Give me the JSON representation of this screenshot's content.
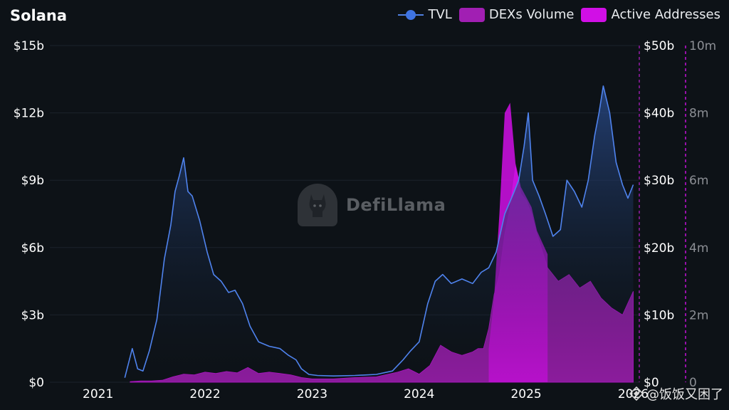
{
  "header": {
    "title": "Solana",
    "legend": [
      {
        "label": "TVL",
        "color": "#3f74e3"
      },
      {
        "label": "DEXs Volume",
        "color": "#a11fb3"
      },
      {
        "label": "Active Addresses",
        "color": "#d10fe6"
      }
    ]
  },
  "watermark": {
    "text": "DefiLlama"
  },
  "corner_mark": {
    "text": "@饭饭又困了",
    "icon": "binance-diamond-icon"
  },
  "chart_data": {
    "type": "area",
    "title": "Solana",
    "x_ticks": [
      "2021",
      "2022",
      "2023",
      "2024",
      "2025",
      "2026"
    ],
    "x_range": [
      2020.55,
      2026.05
    ],
    "y_left": {
      "label": "TVL",
      "range": [
        0,
        15
      ],
      "unit": "billion USD",
      "ticks": [
        "$0",
        "$3b",
        "$6b",
        "$9b",
        "$12b",
        "$15b"
      ]
    },
    "y_right_1": {
      "label": "DEXs Volume",
      "range": [
        0,
        50
      ],
      "unit": "billion USD",
      "ticks": [
        "$0",
        "$10b",
        "$20b",
        "$30b",
        "$40b",
        "$50b"
      ]
    },
    "y_right_2": {
      "label": "Active Addresses",
      "range": [
        0,
        10
      ],
      "unit": "million",
      "ticks": [
        "0",
        "2m",
        "4m",
        "6m",
        "8m",
        "10m"
      ]
    },
    "series": [
      {
        "name": "TVL",
        "type": "line-area",
        "axis": "left",
        "x": [
          2021.25,
          2021.32,
          2021.37,
          2021.42,
          2021.48,
          2021.55,
          2021.62,
          2021.68,
          2021.72,
          2021.76,
          2021.8,
          2021.84,
          2021.88,
          2021.95,
          2022.02,
          2022.08,
          2022.15,
          2022.22,
          2022.28,
          2022.35,
          2022.42,
          2022.5,
          2022.6,
          2022.7,
          2022.78,
          2022.85,
          2022.9,
          2022.97,
          2023.05,
          2023.2,
          2023.4,
          2023.6,
          2023.75,
          2023.85,
          2023.92,
          2024.0,
          2024.08,
          2024.15,
          2024.22,
          2024.3,
          2024.4,
          2024.5,
          2024.58,
          2024.65,
          2024.72,
          2024.8,
          2024.88,
          2024.93,
          2024.98,
          2025.02,
          2025.06,
          2025.12,
          2025.18,
          2025.25,
          2025.32,
          2025.38,
          2025.45,
          2025.52,
          2025.58,
          2025.64,
          2025.68,
          2025.72,
          2025.78,
          2025.84,
          2025.9,
          2025.95,
          2026.0
        ],
        "values": [
          0.2,
          1.5,
          0.6,
          0.5,
          1.4,
          2.8,
          5.5,
          7.0,
          8.5,
          9.2,
          10.0,
          8.5,
          8.3,
          7.2,
          5.8,
          4.8,
          4.5,
          4.0,
          4.1,
          3.5,
          2.5,
          1.8,
          1.6,
          1.5,
          1.2,
          1.0,
          0.6,
          0.35,
          0.3,
          0.28,
          0.3,
          0.35,
          0.5,
          1.0,
          1.4,
          1.8,
          3.5,
          4.5,
          4.8,
          4.4,
          4.6,
          4.4,
          4.9,
          5.1,
          5.8,
          7.5,
          8.4,
          9.0,
          10.5,
          12.0,
          9.0,
          8.3,
          7.5,
          6.5,
          6.8,
          9.0,
          8.5,
          7.8,
          9.0,
          11.0,
          12.0,
          13.2,
          12.0,
          9.8,
          8.8,
          8.2,
          8.8
        ]
      },
      {
        "name": "DEXs Volume",
        "type": "area",
        "axis": "right_1",
        "x": [
          2021.3,
          2021.4,
          2021.5,
          2021.6,
          2021.7,
          2021.8,
          2021.9,
          2022.0,
          2022.1,
          2022.2,
          2022.3,
          2022.4,
          2022.5,
          2022.6,
          2022.7,
          2022.8,
          2022.9,
          2023.0,
          2023.2,
          2023.4,
          2023.6,
          2023.8,
          2023.9,
          2024.0,
          2024.1,
          2024.2,
          2024.3,
          2024.4,
          2024.5,
          2024.55,
          2024.6,
          2024.65,
          2024.7,
          2024.75,
          2024.8,
          2024.85,
          2024.9,
          2024.95,
          2025.0,
          2025.05,
          2025.1,
          2025.2,
          2025.3,
          2025.4,
          2025.5,
          2025.6,
          2025.7,
          2025.8,
          2025.9,
          2026.0
        ],
        "values": [
          0.1,
          0.2,
          0.2,
          0.3,
          0.8,
          1.2,
          1.1,
          1.5,
          1.3,
          1.6,
          1.4,
          2.2,
          1.3,
          1.5,
          1.3,
          1.1,
          0.7,
          0.5,
          0.5,
          0.7,
          0.8,
          1.5,
          2.0,
          1.2,
          2.5,
          5.5,
          4.5,
          4.0,
          4.5,
          5.0,
          5.0,
          8.0,
          13.0,
          16.0,
          22.0,
          26.0,
          32.0,
          28.0,
          27.0,
          25.0,
          22.0,
          17.0,
          15.0,
          16.0,
          14.0,
          15.0,
          12.5,
          11.0,
          10.0,
          13.5
        ]
      },
      {
        "name": "Active Addresses",
        "type": "area",
        "axis": "right_2",
        "x": [
          2024.65,
          2024.7,
          2024.75,
          2024.8,
          2024.85,
          2024.9,
          2024.95,
          2025.0,
          2025.05,
          2025.1,
          2025.2
        ],
        "values": [
          1.0,
          2.5,
          5.0,
          8.0,
          8.3,
          6.5,
          5.8,
          5.5,
          5.2,
          4.5,
          3.8
        ]
      }
    ]
  }
}
